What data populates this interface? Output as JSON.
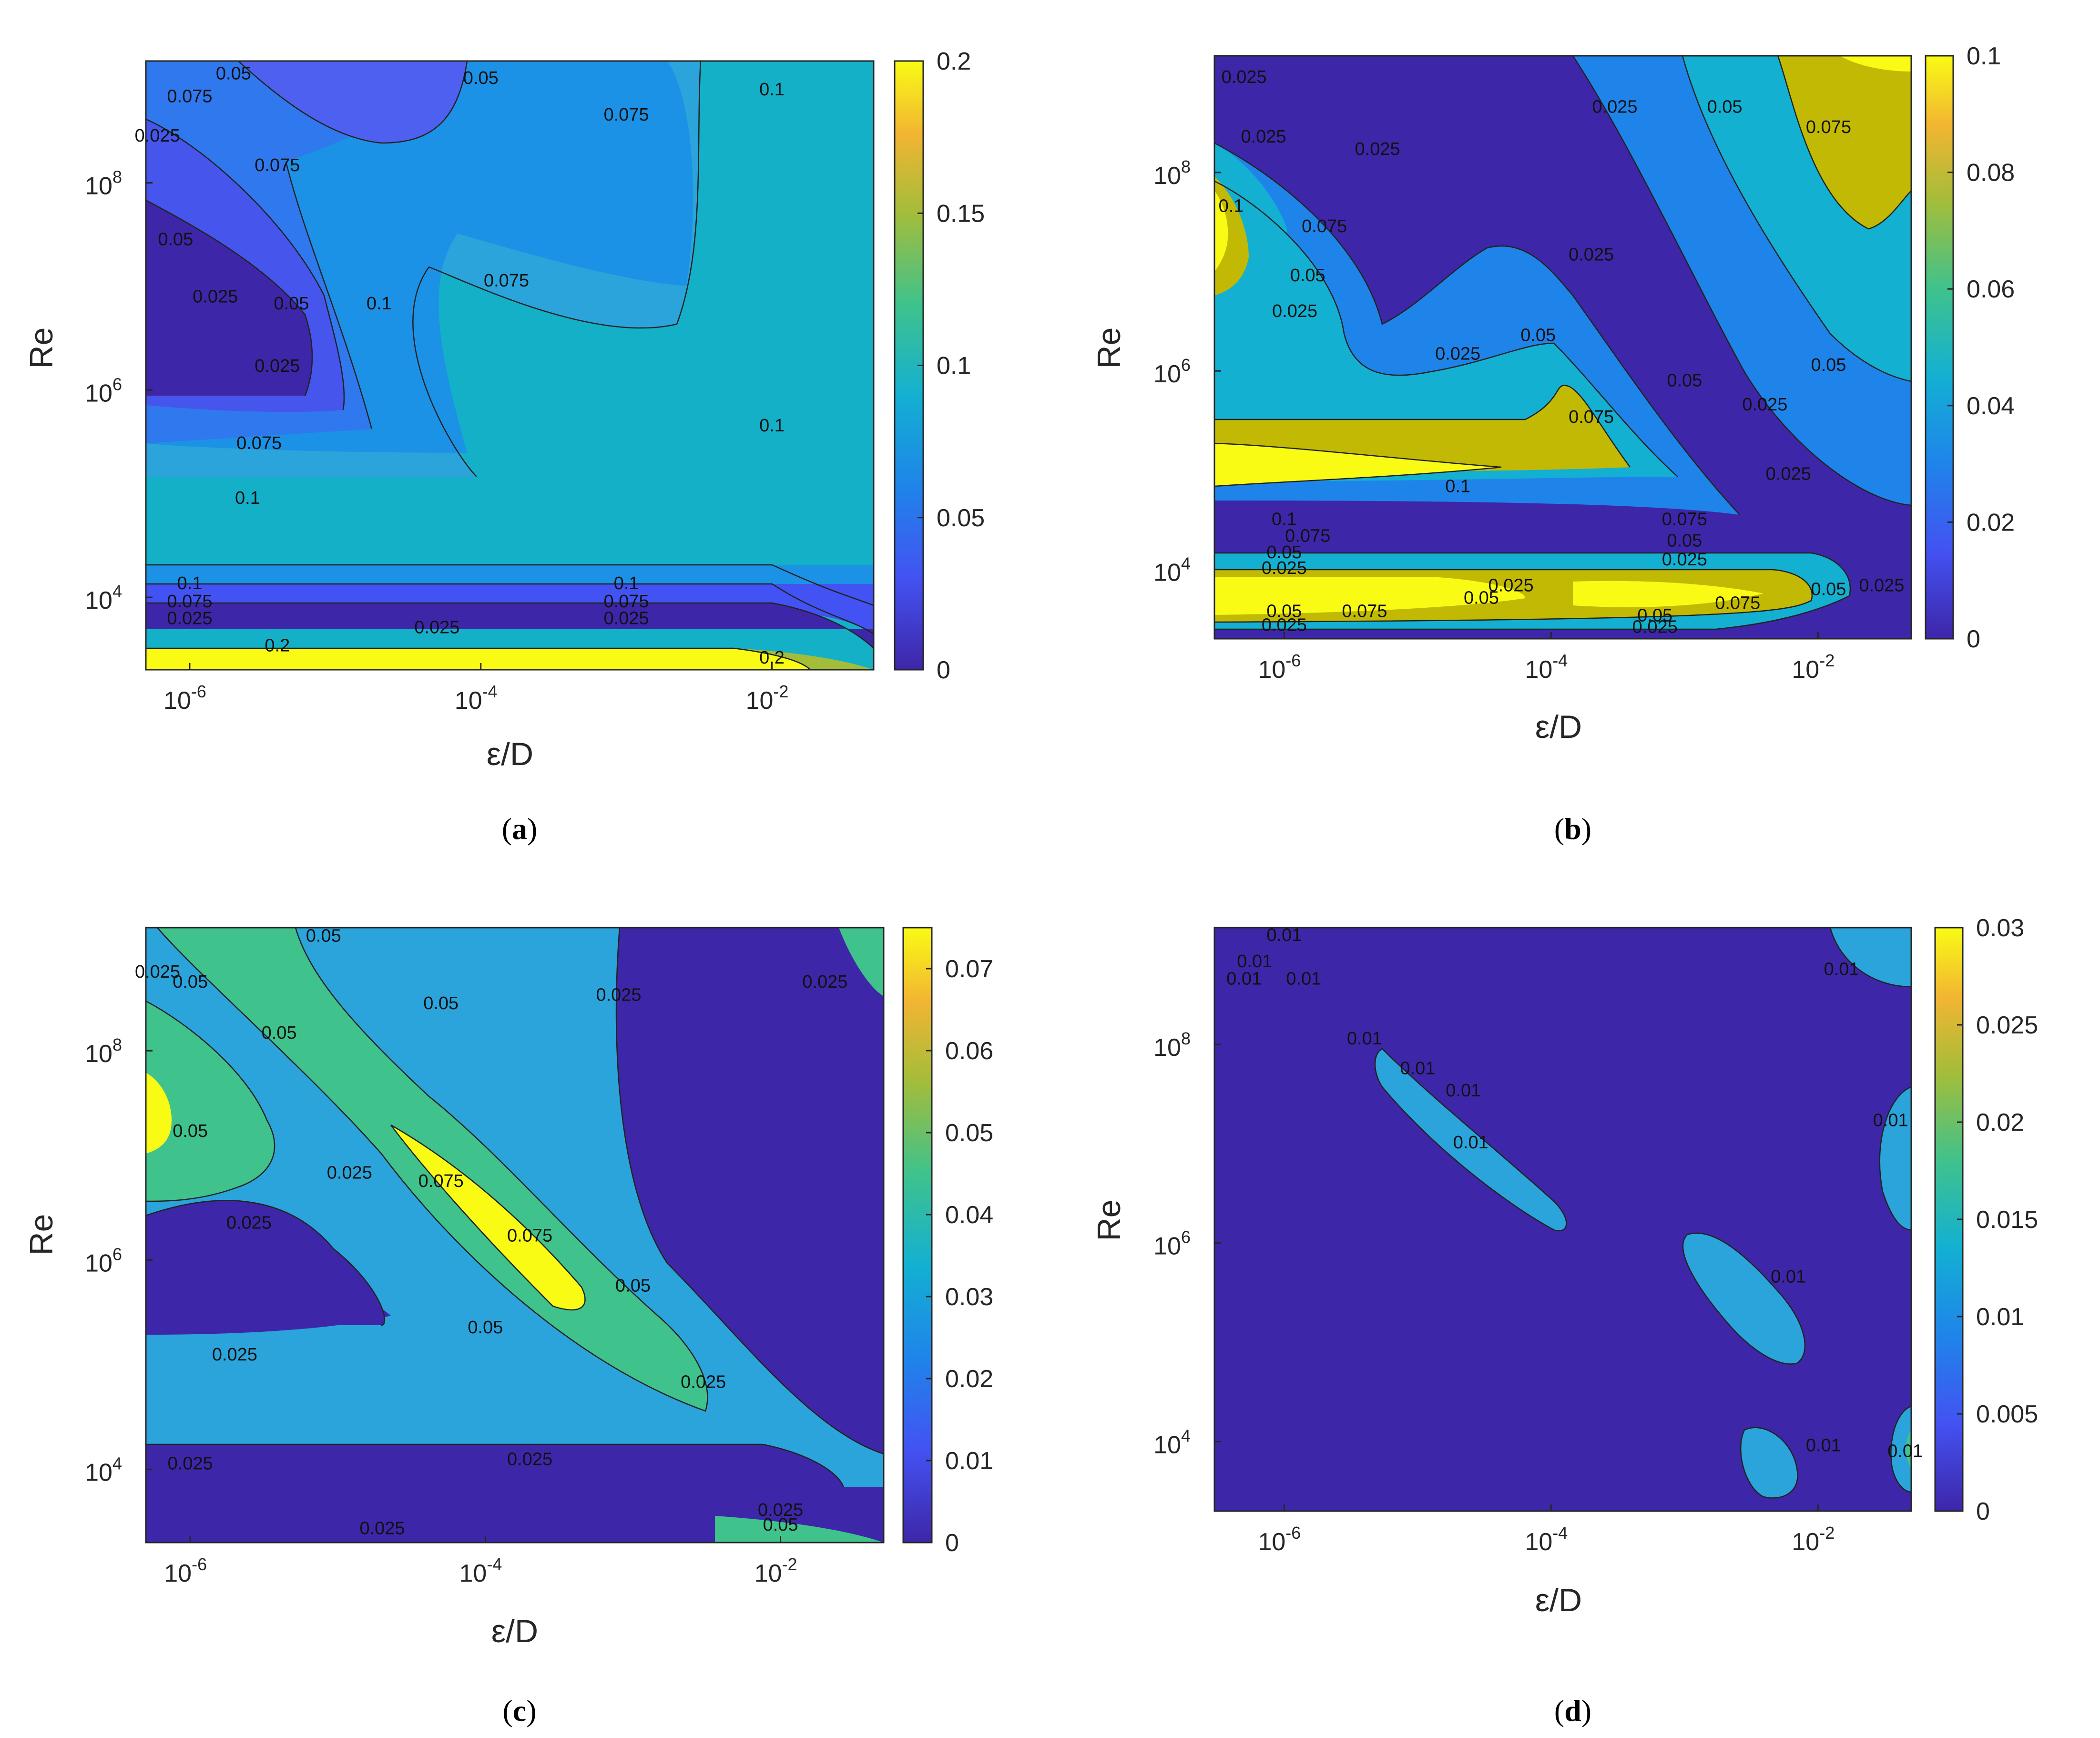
{
  "chart_data": [
    {
      "type": "heatmap",
      "panel": "a",
      "caption_letter": "a",
      "xlabel": "ε/D",
      "ylabel": "Re",
      "xscale": "log",
      "yscale": "log",
      "xlim": [
        5e-07,
        0.05
      ],
      "ylim": [
        2000,
        1500000000.0
      ],
      "x_ticks": [
        {
          "base": "10",
          "exp": "-6",
          "value": 1e-06
        },
        {
          "base": "10",
          "exp": "-4",
          "value": 0.0001
        },
        {
          "base": "10",
          "exp": "-2",
          "value": 0.01
        }
      ],
      "y_ticks": [
        {
          "base": "10",
          "exp": "4",
          "value": 10000.0
        },
        {
          "base": "10",
          "exp": "6",
          "value": 1000000.0
        },
        {
          "base": "10",
          "exp": "8",
          "value": 100000000.0
        }
      ],
      "colorbar": {
        "min": 0,
        "max": 0.2,
        "ticks": [
          "0",
          "0.05",
          "0.1",
          "0.15",
          "0.2"
        ]
      },
      "contour_labels": [
        {
          "text": "0.05",
          "x": 2e-06,
          "y": 1000000000.0
        },
        {
          "text": "0.05",
          "x": 0.0001,
          "y": 900000000.0
        },
        {
          "text": "0.075",
          "x": 0.001,
          "y": 400000000.0
        },
        {
          "text": "0.1",
          "x": 0.01,
          "y": 700000000.0
        },
        {
          "text": "0.075",
          "x": 1e-06,
          "y": 600000000.0
        },
        {
          "text": "0.025",
          "x": 6e-07,
          "y": 250000000.0
        },
        {
          "text": "0.075",
          "x": 4e-06,
          "y": 130000000.0
        },
        {
          "text": "0.05",
          "x": 8e-07,
          "y": 25000000.0
        },
        {
          "text": "0.025",
          "x": 1.5e-06,
          "y": 7000000.0
        },
        {
          "text": "0.05",
          "x": 5e-06,
          "y": 6000000.0
        },
        {
          "text": "0.025",
          "x": 4e-06,
          "y": 1500000.0
        },
        {
          "text": "0.1",
          "x": 2e-05,
          "y": 6000000.0
        },
        {
          "text": "0.075",
          "x": 0.00015,
          "y": 10000000.0
        },
        {
          "text": "0.1",
          "x": 0.01,
          "y": 400000.0
        },
        {
          "text": "0.075",
          "x": 3e-06,
          "y": 270000.0
        },
        {
          "text": "0.1",
          "x": 2.5e-06,
          "y": 80000.0
        },
        {
          "text": "0.1",
          "x": 1e-06,
          "y": 12000.0
        },
        {
          "text": "0.075",
          "x": 1e-06,
          "y": 8000.0
        },
        {
          "text": "0.025",
          "x": 1e-06,
          "y": 5500.0
        },
        {
          "text": "0.1",
          "x": 0.001,
          "y": 12000.0
        },
        {
          "text": "0.075",
          "x": 0.001,
          "y": 8000.0
        },
        {
          "text": "0.025",
          "x": 0.001,
          "y": 5500.0
        },
        {
          "text": "0.025",
          "x": 5e-05,
          "y": 4500.0
        },
        {
          "text": "0.2",
          "x": 4e-06,
          "y": 3000.0
        },
        {
          "text": "0.2",
          "x": 0.01,
          "y": 2300.0
        }
      ]
    },
    {
      "type": "heatmap",
      "panel": "b",
      "caption_letter": "b",
      "xlabel": "ε/D",
      "ylabel": "Re",
      "xscale": "log",
      "yscale": "log",
      "xlim": [
        3e-07,
        0.05
      ],
      "ylim": [
        2000,
        1500000000.0
      ],
      "x_ticks": [
        {
          "base": "10",
          "exp": "-6",
          "value": 1e-06
        },
        {
          "base": "10",
          "exp": "-4",
          "value": 0.0001
        },
        {
          "base": "10",
          "exp": "-2",
          "value": 0.01
        }
      ],
      "y_ticks": [
        {
          "base": "10",
          "exp": "4",
          "value": 10000.0
        },
        {
          "base": "10",
          "exp": "6",
          "value": 1000000.0
        },
        {
          "base": "10",
          "exp": "8",
          "value": 100000000.0
        }
      ],
      "colorbar": {
        "min": 0,
        "max": 0.1,
        "ticks": [
          "0",
          "0.02",
          "0.04",
          "0.06",
          "0.08",
          "0.1"
        ]
      },
      "contour_labels": [
        {
          "text": "0.025",
          "x": 5e-07,
          "y": 800000000.0
        },
        {
          "text": "0.025",
          "x": 7e-07,
          "y": 200000000.0
        },
        {
          "text": "0.1",
          "x": 4e-07,
          "y": 40000000.0
        },
        {
          "text": "0.025",
          "x": 5e-06,
          "y": 150000000.0
        },
        {
          "text": "0.075",
          "x": 2e-06,
          "y": 25000000.0
        },
        {
          "text": "0.05",
          "x": 1.5e-06,
          "y": 8000000.0
        },
        {
          "text": "0.025",
          "x": 1.2e-06,
          "y": 3500000.0
        },
        {
          "text": "0.025",
          "x": 2e-05,
          "y": 1300000.0
        },
        {
          "text": "0.025",
          "x": 0.0003,
          "y": 400000000.0
        },
        {
          "text": "0.025",
          "x": 0.0002,
          "y": 13000000.0
        },
        {
          "text": "0.05",
          "x": 0.002,
          "y": 400000000.0
        },
        {
          "text": "0.075",
          "x": 0.012,
          "y": 250000000.0
        },
        {
          "text": "0.05",
          "x": 8e-05,
          "y": 2000000.0
        },
        {
          "text": "0.05",
          "x": 0.001,
          "y": 700000.0
        },
        {
          "text": "0.075",
          "x": 0.0002,
          "y": 300000.0
        },
        {
          "text": "0.05",
          "x": 0.012,
          "y": 1000000.0
        },
        {
          "text": "0.025",
          "x": 0.004,
          "y": 400000.0
        },
        {
          "text": "0.025",
          "x": 0.006,
          "y": 80000.0
        },
        {
          "text": "0.1",
          "x": 2e-05,
          "y": 60000.0
        },
        {
          "text": "0.1",
          "x": 1e-06,
          "y": 28000.0
        },
        {
          "text": "0.075",
          "x": 1.5e-06,
          "y": 19000.0
        },
        {
          "text": "0.05",
          "x": 1e-06,
          "y": 13000.0
        },
        {
          "text": "0.025",
          "x": 1e-06,
          "y": 9000.0
        },
        {
          "text": "0.075",
          "x": 0.001,
          "y": 28000.0
        },
        {
          "text": "0.05",
          "x": 0.001,
          "y": 17000.0
        },
        {
          "text": "0.025",
          "x": 0.001,
          "y": 11000.0
        },
        {
          "text": "0.025",
          "x": 5e-05,
          "y": 6000.0
        },
        {
          "text": "0.05",
          "x": 3e-05,
          "y": 4500.0
        },
        {
          "text": "0.075",
          "x": 4e-06,
          "y": 3300.0
        },
        {
          "text": "0.05",
          "x": 1e-06,
          "y": 3300.0
        },
        {
          "text": "0.025",
          "x": 1e-06,
          "y": 2400.0
        },
        {
          "text": "0.075",
          "x": 0.0025,
          "y": 4000.0
        },
        {
          "text": "0.05",
          "x": 0.012,
          "y": 5500.0
        },
        {
          "text": "0.025",
          "x": 0.03,
          "y": 6000.0
        },
        {
          "text": "0.05",
          "x": 0.0006,
          "y": 3000.0
        },
        {
          "text": "0.025",
          "x": 0.0006,
          "y": 2300.0
        }
      ]
    },
    {
      "type": "heatmap",
      "panel": "c",
      "caption_letter": "c",
      "xlabel": "ε/D",
      "ylabel": "Re",
      "xscale": "log",
      "yscale": "log",
      "xlim": [
        5e-07,
        0.05
      ],
      "ylim": [
        2000,
        1500000000.0
      ],
      "x_ticks": [
        {
          "base": "10",
          "exp": "-6",
          "value": 1e-06
        },
        {
          "base": "10",
          "exp": "-4",
          "value": 0.0001
        },
        {
          "base": "10",
          "exp": "-2",
          "value": 0.01
        }
      ],
      "y_ticks": [
        {
          "base": "10",
          "exp": "4",
          "value": 10000.0
        },
        {
          "base": "10",
          "exp": "6",
          "value": 1000000.0
        },
        {
          "base": "10",
          "exp": "8",
          "value": 100000000.0
        }
      ],
      "colorbar": {
        "min": 0,
        "max": 0.075,
        "ticks": [
          "0",
          "0.01",
          "0.02",
          "0.03",
          "0.04",
          "0.05",
          "0.06",
          "0.07"
        ]
      },
      "contour_labels": [
        {
          "text": "0.05",
          "x": 8e-06,
          "y": 1100000000.0
        },
        {
          "text": "0.025",
          "x": 6e-07,
          "y": 500000000.0
        },
        {
          "text": "0.05",
          "x": 1e-06,
          "y": 400000000.0
        },
        {
          "text": "0.05",
          "x": 4e-06,
          "y": 130000000.0
        },
        {
          "text": "0.05",
          "x": 5e-05,
          "y": 250000000.0
        },
        {
          "text": "0.025",
          "x": 0.0008,
          "y": 300000000.0
        },
        {
          "text": "0.025",
          "x": 0.02,
          "y": 400000000.0
        },
        {
          "text": "0.05",
          "x": 1e-06,
          "y": 15000000.0
        },
        {
          "text": "0.025",
          "x": 2.5e-06,
          "y": 2000000.0
        },
        {
          "text": "0.025",
          "x": 1.2e-05,
          "y": 6000000.0
        },
        {
          "text": "0.075",
          "x": 5e-05,
          "y": 5000000.0
        },
        {
          "text": "0.075",
          "x": 0.0002,
          "y": 1500000.0
        },
        {
          "text": "0.05",
          "x": 0.001,
          "y": 500000.0
        },
        {
          "text": "0.05",
          "x": 0.0001,
          "y": 200000.0
        },
        {
          "text": "0.025",
          "x": 0.003,
          "y": 60000.0
        },
        {
          "text": "0.025",
          "x": 2e-06,
          "y": 110000.0
        },
        {
          "text": "0.025",
          "x": 1e-06,
          "y": 10000.0
        },
        {
          "text": "0.025",
          "x": 0.0002,
          "y": 11000.0
        },
        {
          "text": "0.025",
          "x": 2e-05,
          "y": 2400.0
        },
        {
          "text": "0.025",
          "x": 0.01,
          "y": 3600.0
        },
        {
          "text": "0.05",
          "x": 0.01,
          "y": 2600.0
        }
      ]
    },
    {
      "type": "heatmap",
      "panel": "d",
      "caption_letter": "d",
      "xlabel": "ε/D",
      "ylabel": "Re",
      "xscale": "log",
      "yscale": "log",
      "xlim": [
        3e-07,
        0.05
      ],
      "ylim": [
        2000,
        1500000000.0
      ],
      "x_ticks": [
        {
          "base": "10",
          "exp": "-6",
          "value": 1e-06
        },
        {
          "base": "10",
          "exp": "-4",
          "value": 0.0001
        },
        {
          "base": "10",
          "exp": "-2",
          "value": 0.01
        }
      ],
      "y_ticks": [
        {
          "base": "10",
          "exp": "4",
          "value": 10000.0
        },
        {
          "base": "10",
          "exp": "6",
          "value": 1000000.0
        },
        {
          "base": "10",
          "exp": "8",
          "value": 100000000.0
        }
      ],
      "colorbar": {
        "min": 0,
        "max": 0.03,
        "ticks": [
          "0",
          "0.005",
          "0.01",
          "0.015",
          "0.02",
          "0.025",
          "0.03"
        ]
      },
      "contour_labels": [
        {
          "text": "0.01",
          "x": 1e-06,
          "y": 1100000000.0
        },
        {
          "text": "0.01",
          "x": 6e-07,
          "y": 600000000.0
        },
        {
          "text": "0.01",
          "x": 1.4e-06,
          "y": 400000000.0
        },
        {
          "text": "0.01",
          "x": 5e-07,
          "y": 400000000.0
        },
        {
          "text": "0.01",
          "x": 4e-06,
          "y": 100000000.0
        },
        {
          "text": "0.01",
          "x": 1e-05,
          "y": 50000000.0
        },
        {
          "text": "0.01",
          "x": 2.2e-05,
          "y": 30000000.0
        },
        {
          "text": "0.01",
          "x": 2.5e-05,
          "y": 9000000.0
        },
        {
          "text": "0.01",
          "x": 0.015,
          "y": 500000000.0
        },
        {
          "text": "0.01",
          "x": 0.035,
          "y": 15000000.0
        },
        {
          "text": "0.01",
          "x": 0.006,
          "y": 400000.0
        },
        {
          "text": "0.01",
          "x": 0.011,
          "y": 8000.0
        },
        {
          "text": "0.01",
          "x": 0.045,
          "y": 7000.0
        }
      ]
    }
  ]
}
